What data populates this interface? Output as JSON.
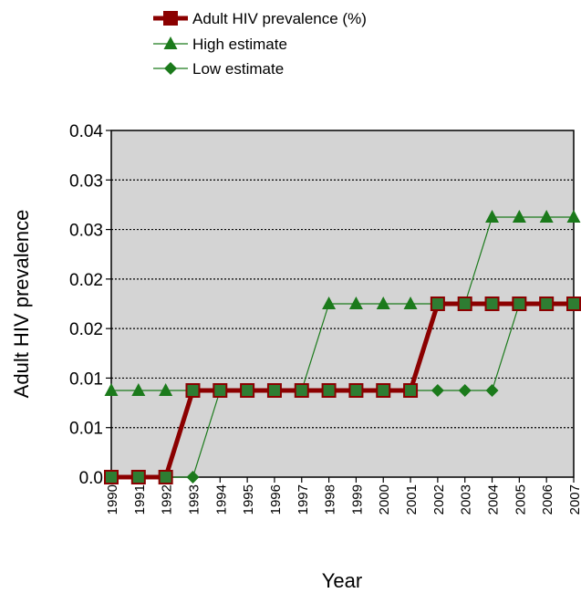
{
  "chart_data": {
    "type": "line",
    "title": "",
    "xlabel": "Year",
    "ylabel": "Adult HIV prevalence",
    "ylim": [
      0.0,
      0.04
    ],
    "y_tick_labels": [
      "0.0",
      "0.01",
      "0.01",
      "0.02",
      "0.02",
      "0.03",
      "0.03",
      "0.04"
    ],
    "grid": "horizontal dotted",
    "plot_background": "#d4d4d4",
    "legend_position": "top",
    "categories": [
      "1990",
      "1991",
      "1992",
      "1993",
      "1994",
      "1995",
      "1996",
      "1997",
      "1998",
      "1999",
      "2000",
      "2001",
      "2002",
      "2003",
      "2004",
      "2005",
      "2006",
      "2007"
    ],
    "series": [
      {
        "name": "Adult HIV prevalence (%)",
        "marker": "square",
        "color": "#8b0000",
        "marker_fill": "#2e7d32",
        "values": [
          0.0,
          0.0,
          0.0,
          0.01,
          0.01,
          0.01,
          0.01,
          0.01,
          0.01,
          0.01,
          0.01,
          0.01,
          0.02,
          0.02,
          0.02,
          0.02,
          0.02,
          0.02
        ]
      },
      {
        "name": "High estimate",
        "marker": "triangle",
        "color": "#1b7a1b",
        "values": [
          0.01,
          0.01,
          0.01,
          0.01,
          0.01,
          0.01,
          0.01,
          0.01,
          0.02,
          0.02,
          0.02,
          0.02,
          0.02,
          0.02,
          0.03,
          0.03,
          0.03,
          0.03
        ]
      },
      {
        "name": "Low estimate",
        "marker": "diamond",
        "color": "#1b7a1b",
        "values": [
          0.0,
          0.0,
          0.0,
          0.0,
          0.01,
          0.01,
          0.01,
          0.01,
          0.01,
          0.01,
          0.01,
          0.01,
          0.01,
          0.01,
          0.01,
          0.02,
          0.02,
          0.02
        ]
      }
    ]
  }
}
